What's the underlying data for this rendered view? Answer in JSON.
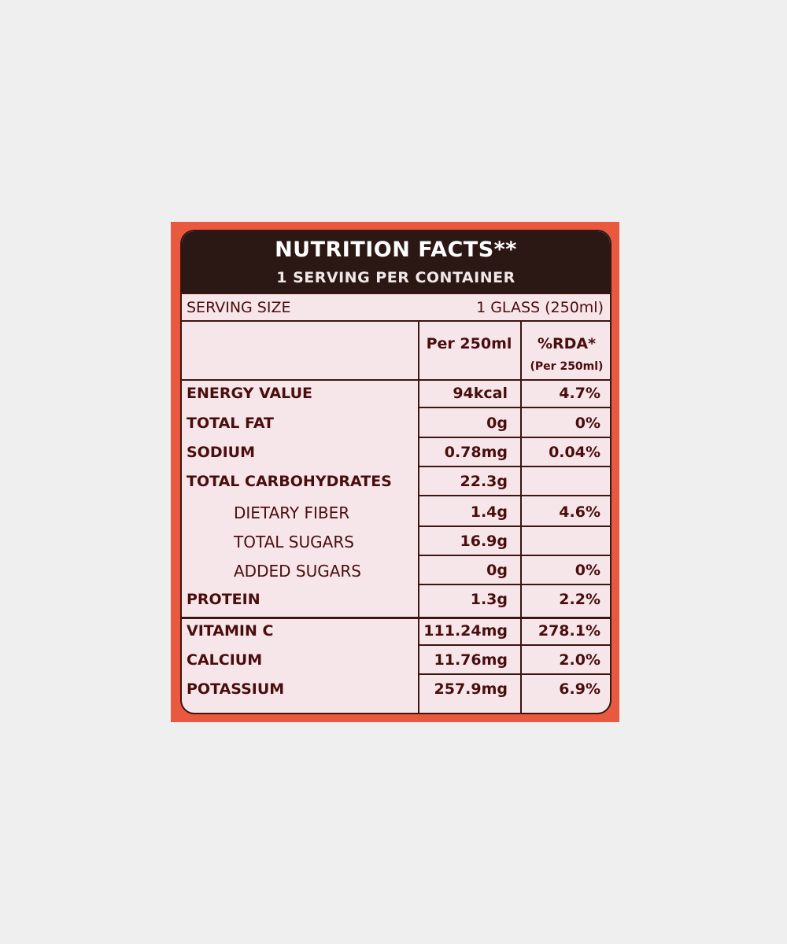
{
  "header": {
    "title": "NUTRITION FACTS**",
    "subtitle": "1 SERVING PER CONTAINER"
  },
  "serving": {
    "label": "SERVING SIZE",
    "value": "1 GLASS (250ml)"
  },
  "table": {
    "columns": [
      "Per 250ml",
      "%RDA*",
      "(Per 250ml)"
    ],
    "rows": [
      [
        "ENERGY VALUE",
        "94kcal",
        "4.7%"
      ],
      [
        "TOTAL FAT",
        "0g",
        "0%"
      ],
      [
        "SODIUM",
        "0.78mg",
        "0.04%"
      ],
      [
        "TOTAL CARBOHYDRATES",
        "22.3g"
      ],
      [
        "DIETARY FIBER",
        "1.4g",
        "4.6%"
      ],
      [
        "TOTAL SUGARS",
        "16.9g"
      ],
      [
        "ADDED SUGARS",
        "0g",
        "0%"
      ],
      [
        "PROTEIN",
        "1.3g",
        "2.2%"
      ],
      [
        "VITAMIN C",
        "111.24mg",
        "278.1%"
      ],
      [
        "CALCIUM",
        "11.76mg",
        "2.0%"
      ],
      [
        "POTASSIUM",
        "257.9mg",
        "6.9%"
      ]
    ]
  }
}
